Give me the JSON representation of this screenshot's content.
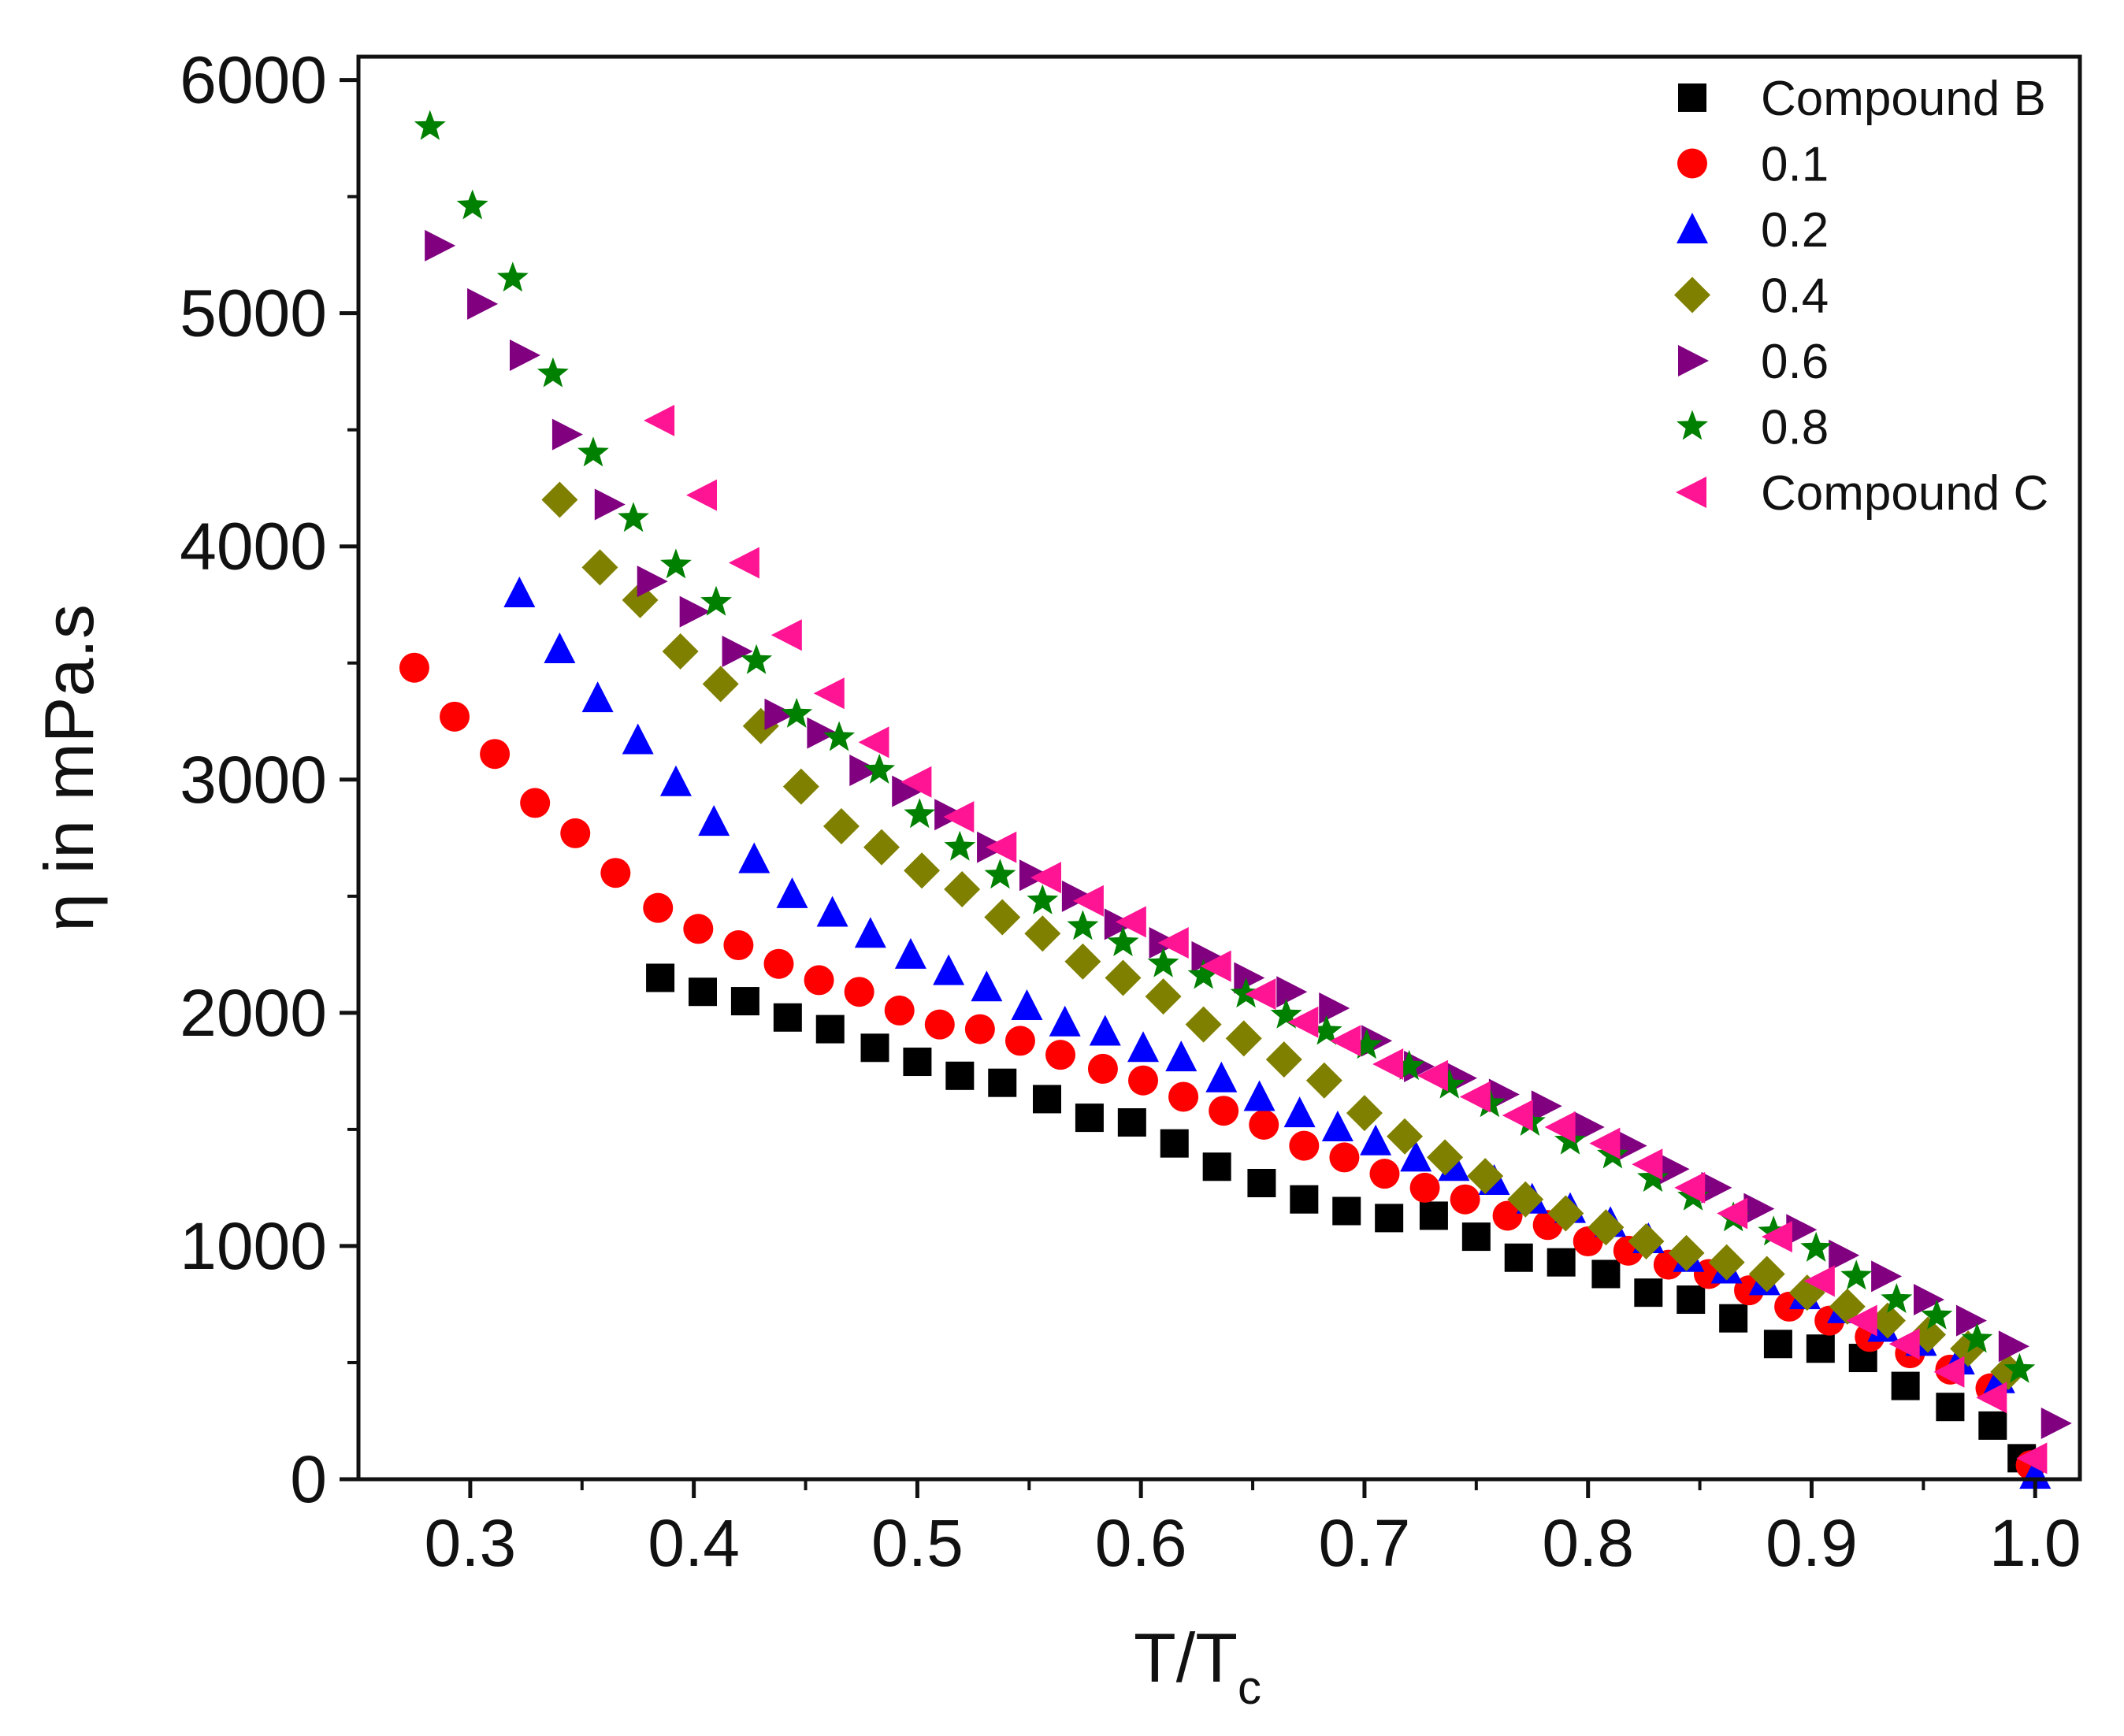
{
  "chart_data": {
    "type": "scatter",
    "title": "",
    "xlabel": "T/T",
    "xlabel_subscript": "c",
    "ylabel": "η in mPa.s",
    "xlim": [
      0.25,
      1.02
    ],
    "ylim": [
      0,
      6100
    ],
    "x_ticks": [
      0.3,
      0.4,
      0.5,
      0.6,
      0.7,
      0.8,
      0.9,
      1.0
    ],
    "x_tick_labels": [
      "0.3",
      "0.4",
      "0.5",
      "0.6",
      "0.7",
      "0.8",
      "0.9",
      "1.0"
    ],
    "y_ticks": [
      0,
      1000,
      2000,
      3000,
      4000,
      5000,
      6000
    ],
    "y_tick_labels": [
      "0",
      "1000",
      "2000",
      "3000",
      "4000",
      "5000",
      "6000"
    ],
    "grid": false,
    "legend_position": "top-right",
    "series": [
      {
        "name": "Compound B",
        "marker": "square",
        "color": "#000000",
        "x": [
          0.385,
          0.404,
          0.423,
          0.442,
          0.461,
          0.481,
          0.5,
          0.519,
          0.538,
          0.558,
          0.577,
          0.596,
          0.615,
          0.634,
          0.654,
          0.673,
          0.692,
          0.711,
          0.731,
          0.75,
          0.769,
          0.788,
          0.808,
          0.827,
          0.846,
          0.865,
          0.885,
          0.904,
          0.923,
          0.942,
          0.962,
          0.981,
          0.994
        ],
        "y": [
          2150,
          2090,
          2050,
          1980,
          1930,
          1850,
          1790,
          1730,
          1700,
          1630,
          1550,
          1530,
          1440,
          1340,
          1270,
          1200,
          1150,
          1120,
          1130,
          1040,
          950,
          930,
          880,
          800,
          770,
          690,
          580,
          560,
          520,
          400,
          310,
          230,
          90
        ]
      },
      {
        "name": "0.1",
        "marker": "circle",
        "color": "#ff0000",
        "x": [
          0.275,
          0.293,
          0.311,
          0.329,
          0.347,
          0.365,
          0.384,
          0.402,
          0.42,
          0.438,
          0.456,
          0.474,
          0.492,
          0.51,
          0.528,
          0.546,
          0.564,
          0.583,
          0.601,
          0.619,
          0.637,
          0.655,
          0.673,
          0.691,
          0.709,
          0.727,
          0.745,
          0.764,
          0.782,
          0.8,
          0.818,
          0.836,
          0.854,
          0.872,
          0.89,
          0.908,
          0.926,
          0.944,
          0.962,
          0.98,
          0.998
        ],
        "y": [
          3480,
          3270,
          3110,
          2900,
          2770,
          2600,
          2450,
          2360,
          2290,
          2210,
          2140,
          2090,
          2010,
          1950,
          1930,
          1880,
          1820,
          1760,
          1710,
          1640,
          1580,
          1520,
          1430,
          1380,
          1310,
          1250,
          1200,
          1130,
          1090,
          1020,
          980,
          920,
          880,
          810,
          740,
          680,
          610,
          540,
          470,
          390,
          60
        ]
      },
      {
        "name": "0.2",
        "marker": "triangle-up",
        "color": "#0000ff",
        "x": [
          0.322,
          0.34,
          0.357,
          0.375,
          0.392,
          0.409,
          0.427,
          0.444,
          0.462,
          0.479,
          0.497,
          0.514,
          0.531,
          0.549,
          0.566,
          0.584,
          0.601,
          0.618,
          0.636,
          0.653,
          0.671,
          0.688,
          0.705,
          0.723,
          0.74,
          0.758,
          0.775,
          0.792,
          0.81,
          0.827,
          0.845,
          0.862,
          0.879,
          0.897,
          0.914,
          0.932,
          0.949,
          0.966,
          0.984,
          1.0
        ],
        "y": [
          3800,
          3560,
          3350,
          3170,
          2990,
          2820,
          2660,
          2510,
          2430,
          2340,
          2250,
          2180,
          2110,
          2030,
          1960,
          1920,
          1850,
          1810,
          1720,
          1640,
          1570,
          1510,
          1450,
          1380,
          1340,
          1280,
          1200,
          1160,
          1100,
          1030,
          950,
          900,
          850,
          790,
          730,
          650,
          590,
          510,
          430,
          20
        ]
      },
      {
        "name": "0.4",
        "marker": "diamond",
        "color": "#808000",
        "x": [
          0.34,
          0.358,
          0.376,
          0.394,
          0.412,
          0.43,
          0.448,
          0.466,
          0.484,
          0.502,
          0.52,
          0.538,
          0.556,
          0.574,
          0.592,
          0.61,
          0.628,
          0.646,
          0.664,
          0.682,
          0.7,
          0.718,
          0.736,
          0.754,
          0.772,
          0.79,
          0.808,
          0.826,
          0.844,
          0.862,
          0.88,
          0.898,
          0.916,
          0.934,
          0.952,
          0.97,
          0.988
        ],
        "y": [
          4200,
          3910,
          3770,
          3550,
          3410,
          3230,
          2970,
          2800,
          2710,
          2610,
          2530,
          2410,
          2340,
          2220,
          2150,
          2070,
          1950,
          1890,
          1800,
          1710,
          1570,
          1470,
          1380,
          1300,
          1200,
          1140,
          1080,
          1020,
          970,
          930,
          880,
          800,
          740,
          680,
          620,
          560,
          460
        ]
      },
      {
        "name": "0.6",
        "marker": "triangle-right",
        "color": "#800080",
        "x": [
          0.286,
          0.305,
          0.324,
          0.343,
          0.362,
          0.381,
          0.4,
          0.419,
          0.438,
          0.457,
          0.476,
          0.495,
          0.514,
          0.533,
          0.552,
          0.571,
          0.59,
          0.61,
          0.629,
          0.648,
          0.667,
          0.686,
          0.705,
          0.724,
          0.743,
          0.762,
          0.781,
          0.8,
          0.819,
          0.838,
          0.857,
          0.876,
          0.895,
          0.914,
          0.933,
          0.952,
          0.971,
          0.99,
          1.009
        ],
        "y": [
          5290,
          5040,
          4820,
          4480,
          4180,
          3850,
          3720,
          3550,
          3280,
          3200,
          3040,
          2950,
          2850,
          2710,
          2590,
          2500,
          2380,
          2300,
          2240,
          2150,
          2090,
          2020,
          1880,
          1770,
          1720,
          1650,
          1600,
          1510,
          1430,
          1330,
          1250,
          1160,
          1070,
          960,
          870,
          770,
          680,
          570,
          240
        ]
      },
      {
        "name": "0.8",
        "marker": "star",
        "color": "#008000",
        "x": [
          0.282,
          0.301,
          0.319,
          0.337,
          0.355,
          0.373,
          0.392,
          0.41,
          0.428,
          0.446,
          0.465,
          0.483,
          0.501,
          0.519,
          0.537,
          0.556,
          0.574,
          0.592,
          0.61,
          0.628,
          0.647,
          0.665,
          0.683,
          0.701,
          0.72,
          0.738,
          0.756,
          0.774,
          0.792,
          0.811,
          0.829,
          0.847,
          0.865,
          0.883,
          0.902,
          0.92,
          0.938,
          0.956,
          0.974,
          0.993
        ],
        "y": [
          5800,
          5460,
          5150,
          4740,
          4400,
          4120,
          3920,
          3760,
          3510,
          3280,
          3180,
          3040,
          2850,
          2710,
          2590,
          2480,
          2370,
          2300,
          2210,
          2160,
          2080,
          1990,
          1920,
          1860,
          1770,
          1690,
          1610,
          1530,
          1450,
          1390,
          1290,
          1210,
          1120,
          1060,
          990,
          870,
          770,
          700,
          600,
          470
        ]
      },
      {
        "name": "Compound C",
        "marker": "triangle-left",
        "color": "#ff1493",
        "x": [
          0.385,
          0.404,
          0.423,
          0.442,
          0.461,
          0.481,
          0.5,
          0.519,
          0.538,
          0.558,
          0.577,
          0.596,
          0.615,
          0.634,
          0.654,
          0.673,
          0.692,
          0.711,
          0.731,
          0.75,
          0.769,
          0.788,
          0.808,
          0.827,
          0.846,
          0.865,
          0.885,
          0.904,
          0.923,
          0.942,
          0.962,
          0.981,
          0.999
        ],
        "y": [
          4540,
          4220,
          3930,
          3620,
          3370,
          3160,
          2990,
          2840,
          2710,
          2580,
          2480,
          2390,
          2300,
          2200,
          2080,
          1960,
          1880,
          1780,
          1730,
          1640,
          1560,
          1510,
          1440,
          1350,
          1250,
          1140,
          1040,
          850,
          680,
          580,
          460,
          350,
          90
        ]
      }
    ]
  }
}
